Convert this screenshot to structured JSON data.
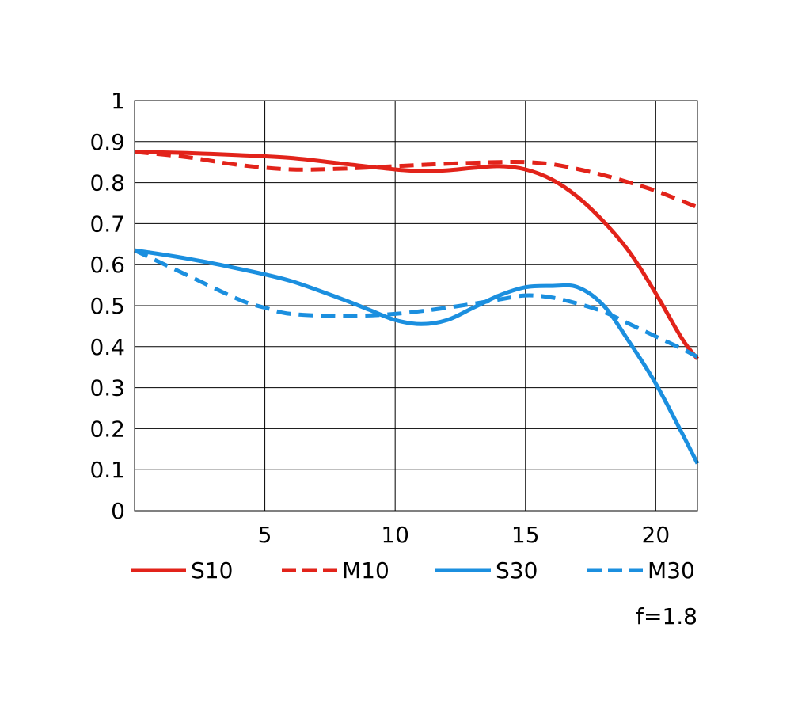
{
  "chart_data": {
    "type": "line",
    "title": "",
    "xlabel": "",
    "ylabel": "",
    "xlim": [
      0,
      21.6
    ],
    "ylim": [
      0,
      1
    ],
    "x_ticks": [
      5,
      10,
      15,
      20
    ],
    "x_tick_labels": [
      "5",
      "10",
      "15",
      "20"
    ],
    "y_ticks": [
      0,
      0.1,
      0.2,
      0.3,
      0.4,
      0.5,
      0.6,
      0.7,
      0.8,
      0.9,
      1
    ],
    "y_tick_labels": [
      "0",
      "0.1",
      "0.2",
      "0.3",
      "0.4",
      "0.5",
      "0.6",
      "0.7",
      "0.8",
      "0.9",
      "1"
    ],
    "grid": true,
    "legend_position": "bottom",
    "series": [
      {
        "name": "S10",
        "color": "#e2231a",
        "style": "solid",
        "x": [
          0,
          2,
          4,
          6,
          8,
          10,
          11,
          12,
          13,
          14,
          15,
          16,
          17,
          18,
          19,
          20,
          21,
          21.6
        ],
        "y": [
          0.875,
          0.872,
          0.867,
          0.86,
          0.846,
          0.832,
          0.828,
          0.83,
          0.836,
          0.84,
          0.832,
          0.808,
          0.765,
          0.705,
          0.63,
          0.53,
          0.42,
          0.37
        ]
      },
      {
        "name": "M10",
        "color": "#e2231a",
        "style": "dashed",
        "x": [
          0,
          2,
          4,
          6,
          8,
          10,
          12,
          14,
          15,
          16,
          17,
          18,
          19,
          20,
          21,
          21.6
        ],
        "y": [
          0.875,
          0.862,
          0.843,
          0.832,
          0.834,
          0.84,
          0.846,
          0.85,
          0.85,
          0.845,
          0.833,
          0.818,
          0.8,
          0.78,
          0.755,
          0.74
        ]
      },
      {
        "name": "S30",
        "color": "#1b8fdf",
        "style": "solid",
        "x": [
          0,
          2,
          4,
          6,
          8,
          9,
          10,
          11,
          12,
          13,
          14,
          15,
          16,
          17,
          18,
          19,
          20,
          21,
          21.6
        ],
        "y": [
          0.635,
          0.615,
          0.59,
          0.56,
          0.515,
          0.49,
          0.465,
          0.455,
          0.465,
          0.495,
          0.525,
          0.545,
          0.548,
          0.545,
          0.5,
          0.41,
          0.31,
          0.19,
          0.115
        ]
      },
      {
        "name": "M30",
        "color": "#1b8fdf",
        "style": "dashed",
        "x": [
          0,
          2,
          4,
          5,
          6,
          8,
          10,
          12,
          14,
          15,
          16,
          17,
          18,
          19,
          20,
          21,
          21.6
        ],
        "y": [
          0.635,
          0.575,
          0.515,
          0.495,
          0.48,
          0.475,
          0.48,
          0.495,
          0.515,
          0.525,
          0.52,
          0.505,
          0.485,
          0.455,
          0.425,
          0.395,
          0.375
        ]
      }
    ]
  },
  "annotation": "f=1.8"
}
